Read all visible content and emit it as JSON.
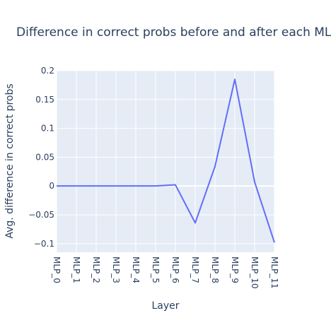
{
  "chart_data": {
    "type": "line",
    "title": "Difference in correct probs before and after each MLP",
    "xlabel": "Layer",
    "ylabel": "Avg. difference in correct probs",
    "categories": [
      "MLP_0",
      "MLP_1",
      "MLP_2",
      "MLP_3",
      "MLP_4",
      "MLP_5",
      "MLP_6",
      "MLP_7",
      "MLP_8",
      "MLP_9",
      "MLP_10",
      "MLP_11"
    ],
    "series": [
      {
        "values": [
          0,
          0,
          0,
          0,
          0,
          0,
          0.002,
          -0.064,
          0.034,
          0.185,
          0.007,
          -0.098
        ]
      }
    ],
    "ylim": [
      -0.115,
      0.2
    ],
    "yticks": [
      -0.1,
      -0.05,
      0,
      0.05,
      0.1,
      0.15,
      0.2
    ],
    "ytick_labels": [
      "−0.1",
      "−0.05",
      "0",
      "0.05",
      "0.1",
      "0.15",
      "0.2"
    ],
    "grid": true,
    "colors": {
      "line": "#636efa",
      "plot_bg": "#e5ecf6",
      "grid": "#ffffff",
      "text": "#2a3f5f"
    }
  }
}
